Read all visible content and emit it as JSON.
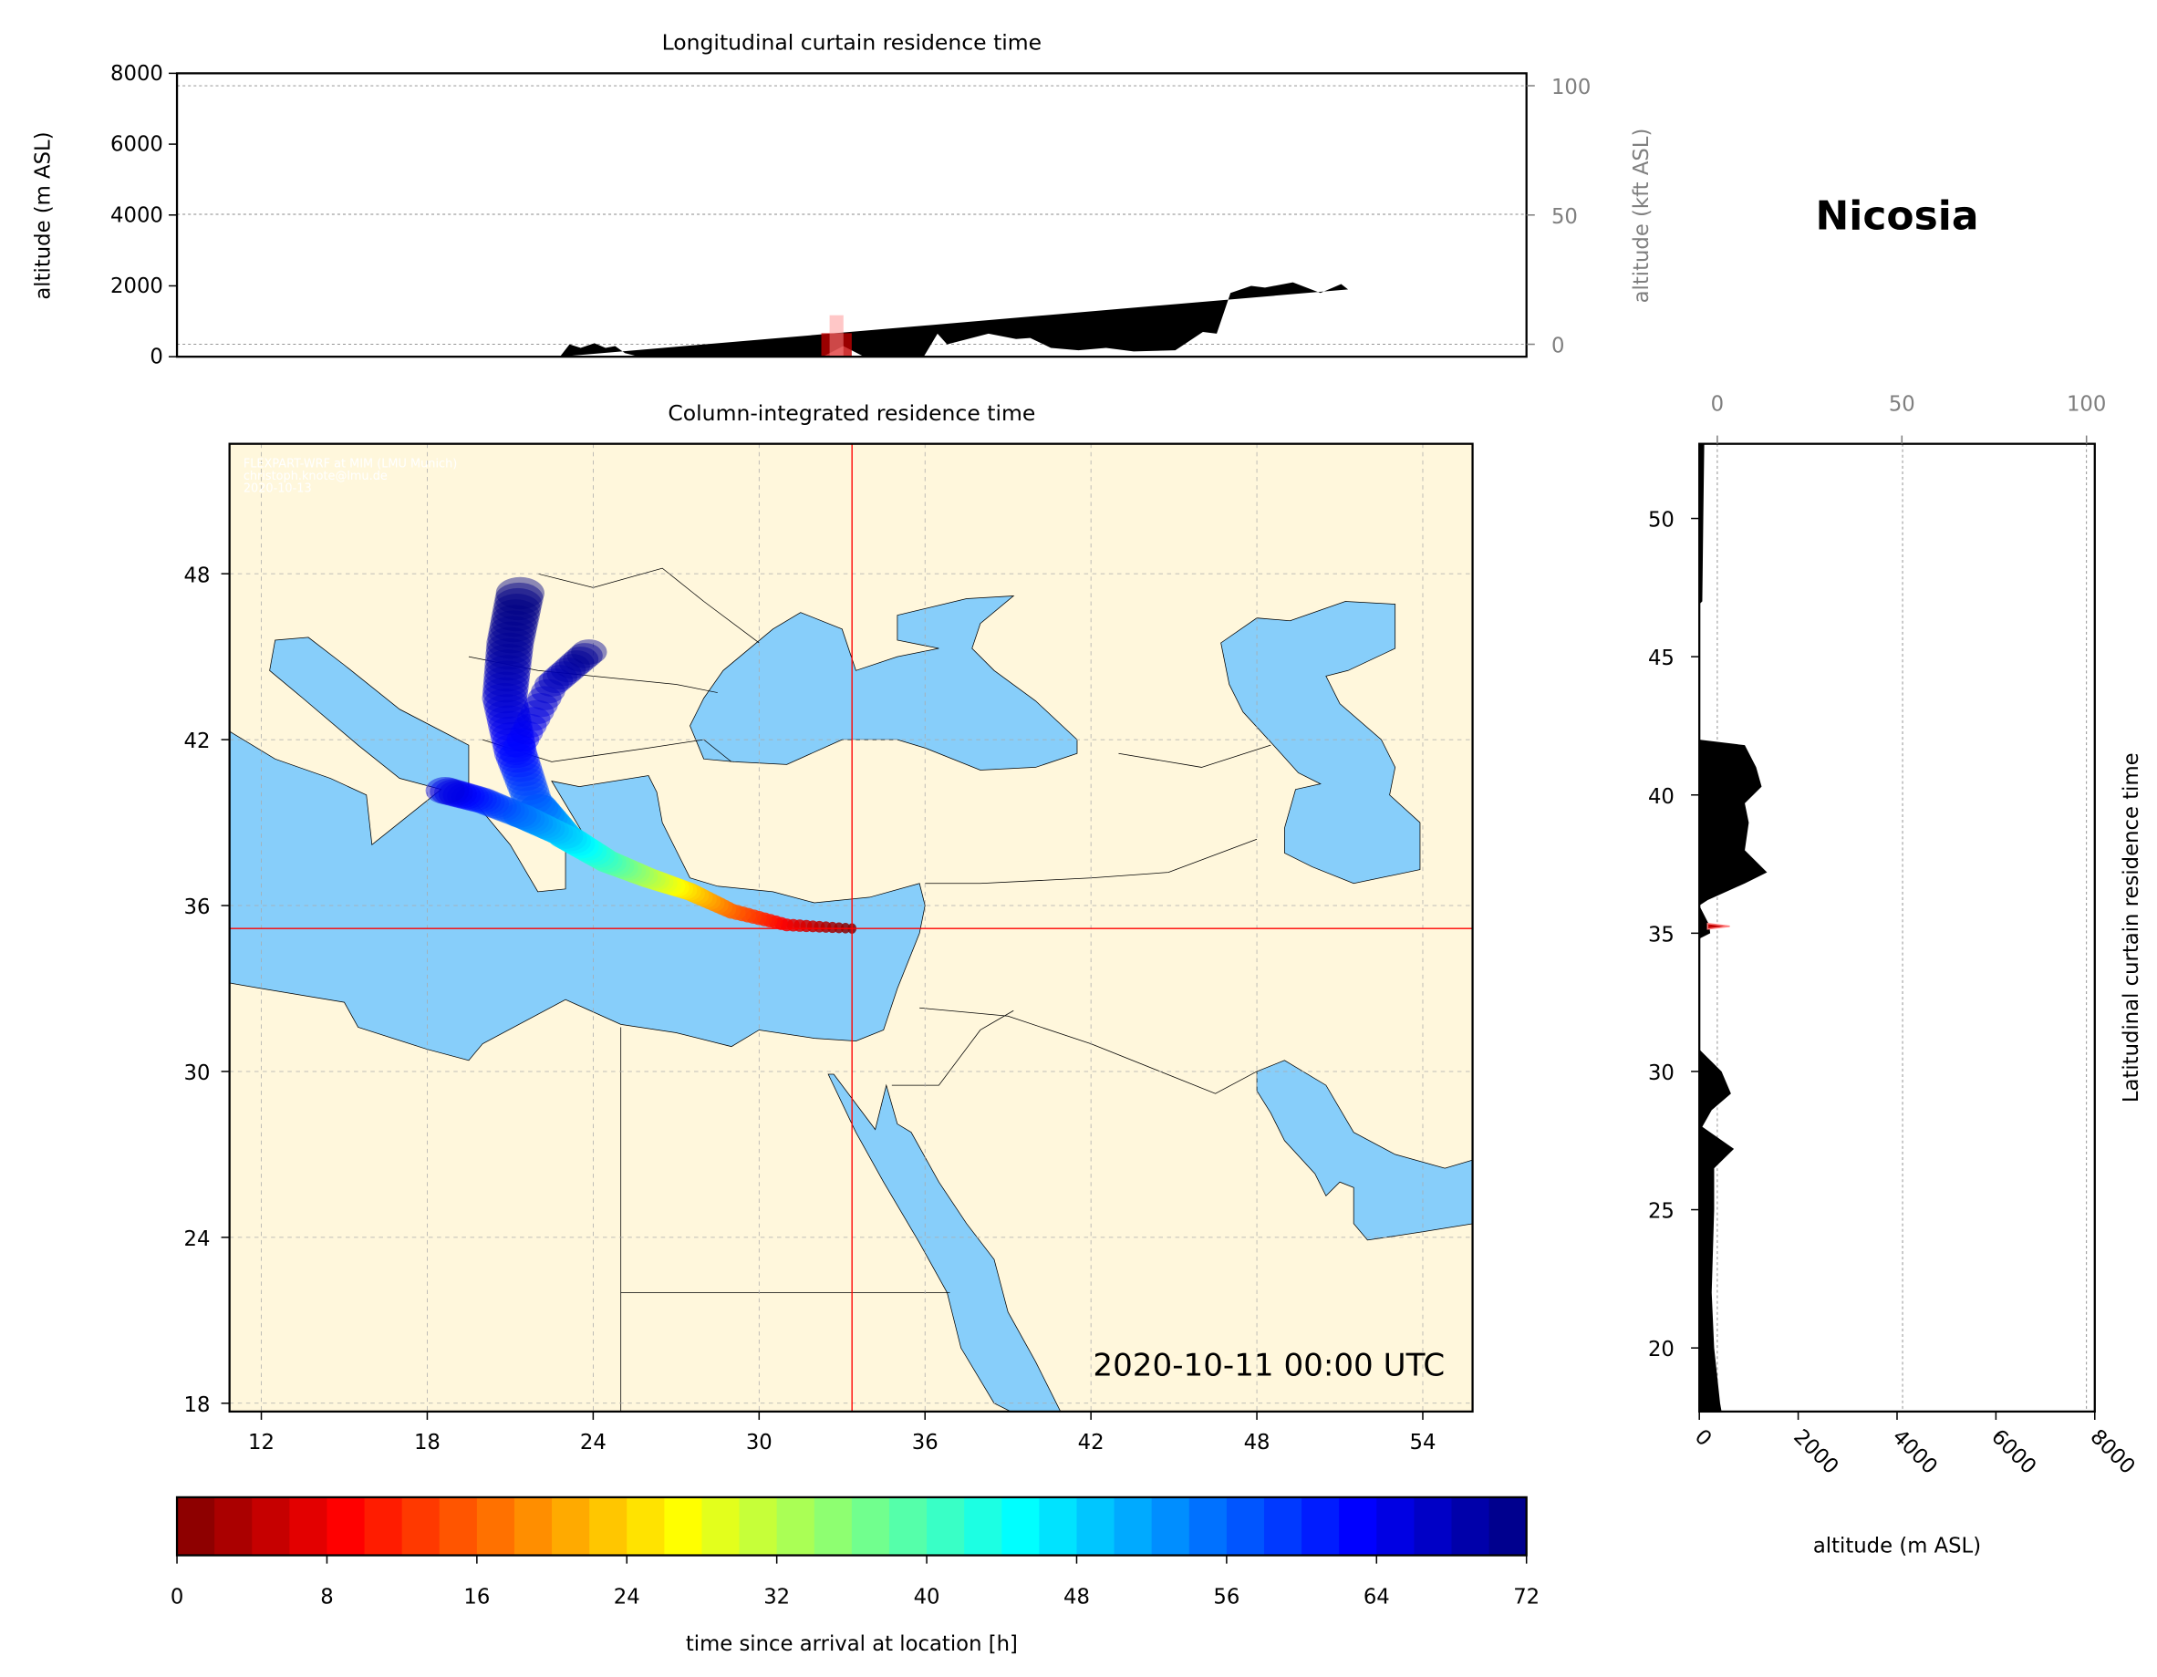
{
  "location_title": "Nicosia",
  "top_panel": {
    "title": "Longitudinal curtain residence time",
    "ylabel_left": "altitude (m ASL)",
    "ylabel_right": "altitude (kft ASL)",
    "left_ticks": [
      0,
      2000,
      4000,
      6000,
      8000
    ],
    "right_ticks": [
      0,
      50,
      100
    ],
    "ylim": [
      0,
      8000
    ]
  },
  "map_panel": {
    "title": "Column-integrated residence time",
    "watermark": [
      "FLEXPART-WRF at MIM (LMU Munich)",
      "christoph.knote@lmu.de",
      "2020-10-13"
    ],
    "timestamp": "2020-10-11 00:00 UTC",
    "lon_ticks": [
      12,
      18,
      24,
      30,
      36,
      42,
      48,
      54
    ],
    "lat_ticks": [
      18,
      24,
      30,
      36,
      42,
      48
    ],
    "lon_range": [
      10.85,
      55.85
    ],
    "lat_range": [
      17.7,
      52.7
    ],
    "crosshair": {
      "lon": 33.36,
      "lat": 35.17,
      "color": "#ff0000"
    },
    "land_color": "#fff7dc",
    "sea_color": "#87cefa"
  },
  "right_panel": {
    "ylabel": "Latitudinal curtain residence time",
    "xlabel": "altitude (m ASL)",
    "bottom_ticks": [
      0,
      2000,
      4000,
      6000,
      8000
    ],
    "top_ticks": [
      0,
      50,
      100
    ],
    "lat_ticks": [
      20,
      25,
      30,
      35,
      40,
      45,
      50
    ]
  },
  "colorbar": {
    "label": "time since arrival at location [h]",
    "ticks": [
      0,
      8,
      16,
      24,
      32,
      40,
      48,
      56,
      64,
      72
    ],
    "range": [
      0,
      72
    ],
    "colormap": "jet_r"
  },
  "chart_data": {
    "type": "area",
    "longitudinal_terrain": {
      "lon": [
        23.62,
        23.94,
        24.31,
        24.77,
        25.14,
        25.46,
        25.79,
        26.25,
        32.38,
        33.07,
        33.76,
        35.75,
        36.21,
        36.53,
        37.91,
        38.83,
        39.3,
        39.99,
        40.91,
        41.83,
        42.75,
        44.14,
        45.06,
        45.52,
        45.98,
        46.67,
        47.13,
        48.06,
        48.98,
        49.67,
        49.9
      ],
      "altitude_m": [
        0,
        350,
        250,
        380,
        250,
        300,
        100,
        0,
        0,
        300,
        0,
        0,
        650,
        350,
        650,
        500,
        530,
        250,
        180,
        250,
        150,
        180,
        700,
        650,
        1800,
        2000,
        1950,
        2100,
        1800,
        2050,
        1900
      ]
    },
    "latitudinal_terrain": {
      "lat": [
        52.7,
        50,
        47,
        46.9,
        42,
        41.8,
        41,
        40.3,
        39.7,
        39,
        38,
        37.2,
        36.8,
        36.2,
        36.0,
        35.3,
        35.0,
        34.8,
        30.8,
        30,
        29.2,
        28.6,
        28,
        27.2,
        26.5,
        25,
        22,
        20,
        18,
        17.7
      ],
      "altitude_m": [
        100,
        80,
        60,
        0,
        0,
        920,
        1150,
        1260,
        920,
        1000,
        920,
        1370,
        920,
        170,
        0,
        200,
        220,
        0,
        0,
        450,
        640,
        250,
        60,
        700,
        300,
        300,
        250,
        300,
        420,
        450
      ]
    },
    "plume_track": {
      "lon": [
        33.36,
        31.0,
        29.0,
        27.5,
        26.0,
        24.5,
        23.0,
        21.8,
        21.2,
        20.8,
        21.0,
        21.4
      ],
      "lat": [
        35.17,
        35.3,
        35.8,
        36.5,
        37.0,
        37.6,
        38.5,
        39.8,
        41.5,
        43.5,
        45.5,
        47.5
      ],
      "hours": [
        0,
        8,
        16,
        24,
        32,
        40,
        48,
        56,
        62,
        66,
        70,
        72
      ]
    }
  }
}
